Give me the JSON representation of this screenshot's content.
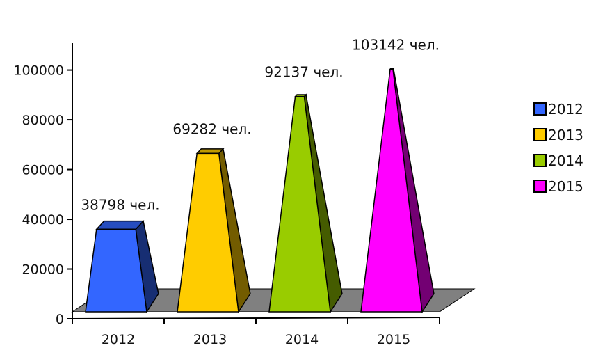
{
  "chart_data": {
    "type": "bar",
    "bar_shape": "pyramid-3d",
    "categories": [
      "2012",
      "2013",
      "2014",
      "2015"
    ],
    "values": [
      38798,
      69282,
      92137,
      103142
    ],
    "data_labels": [
      "38798 чел.",
      "69282 чел.",
      "92137 чел.",
      "103142 чел."
    ],
    "colors": [
      "#3366ff",
      "#ffcc00",
      "#99cc00",
      "#ff00ff"
    ],
    "y_ticks": [
      "0",
      "20000",
      "40000",
      "60000",
      "80000",
      "100000"
    ],
    "ylim": [
      0,
      108000
    ],
    "grid": false,
    "legend": {
      "position": "right",
      "entries": [
        "2012",
        "2013",
        "2014",
        "2015"
      ]
    }
  }
}
